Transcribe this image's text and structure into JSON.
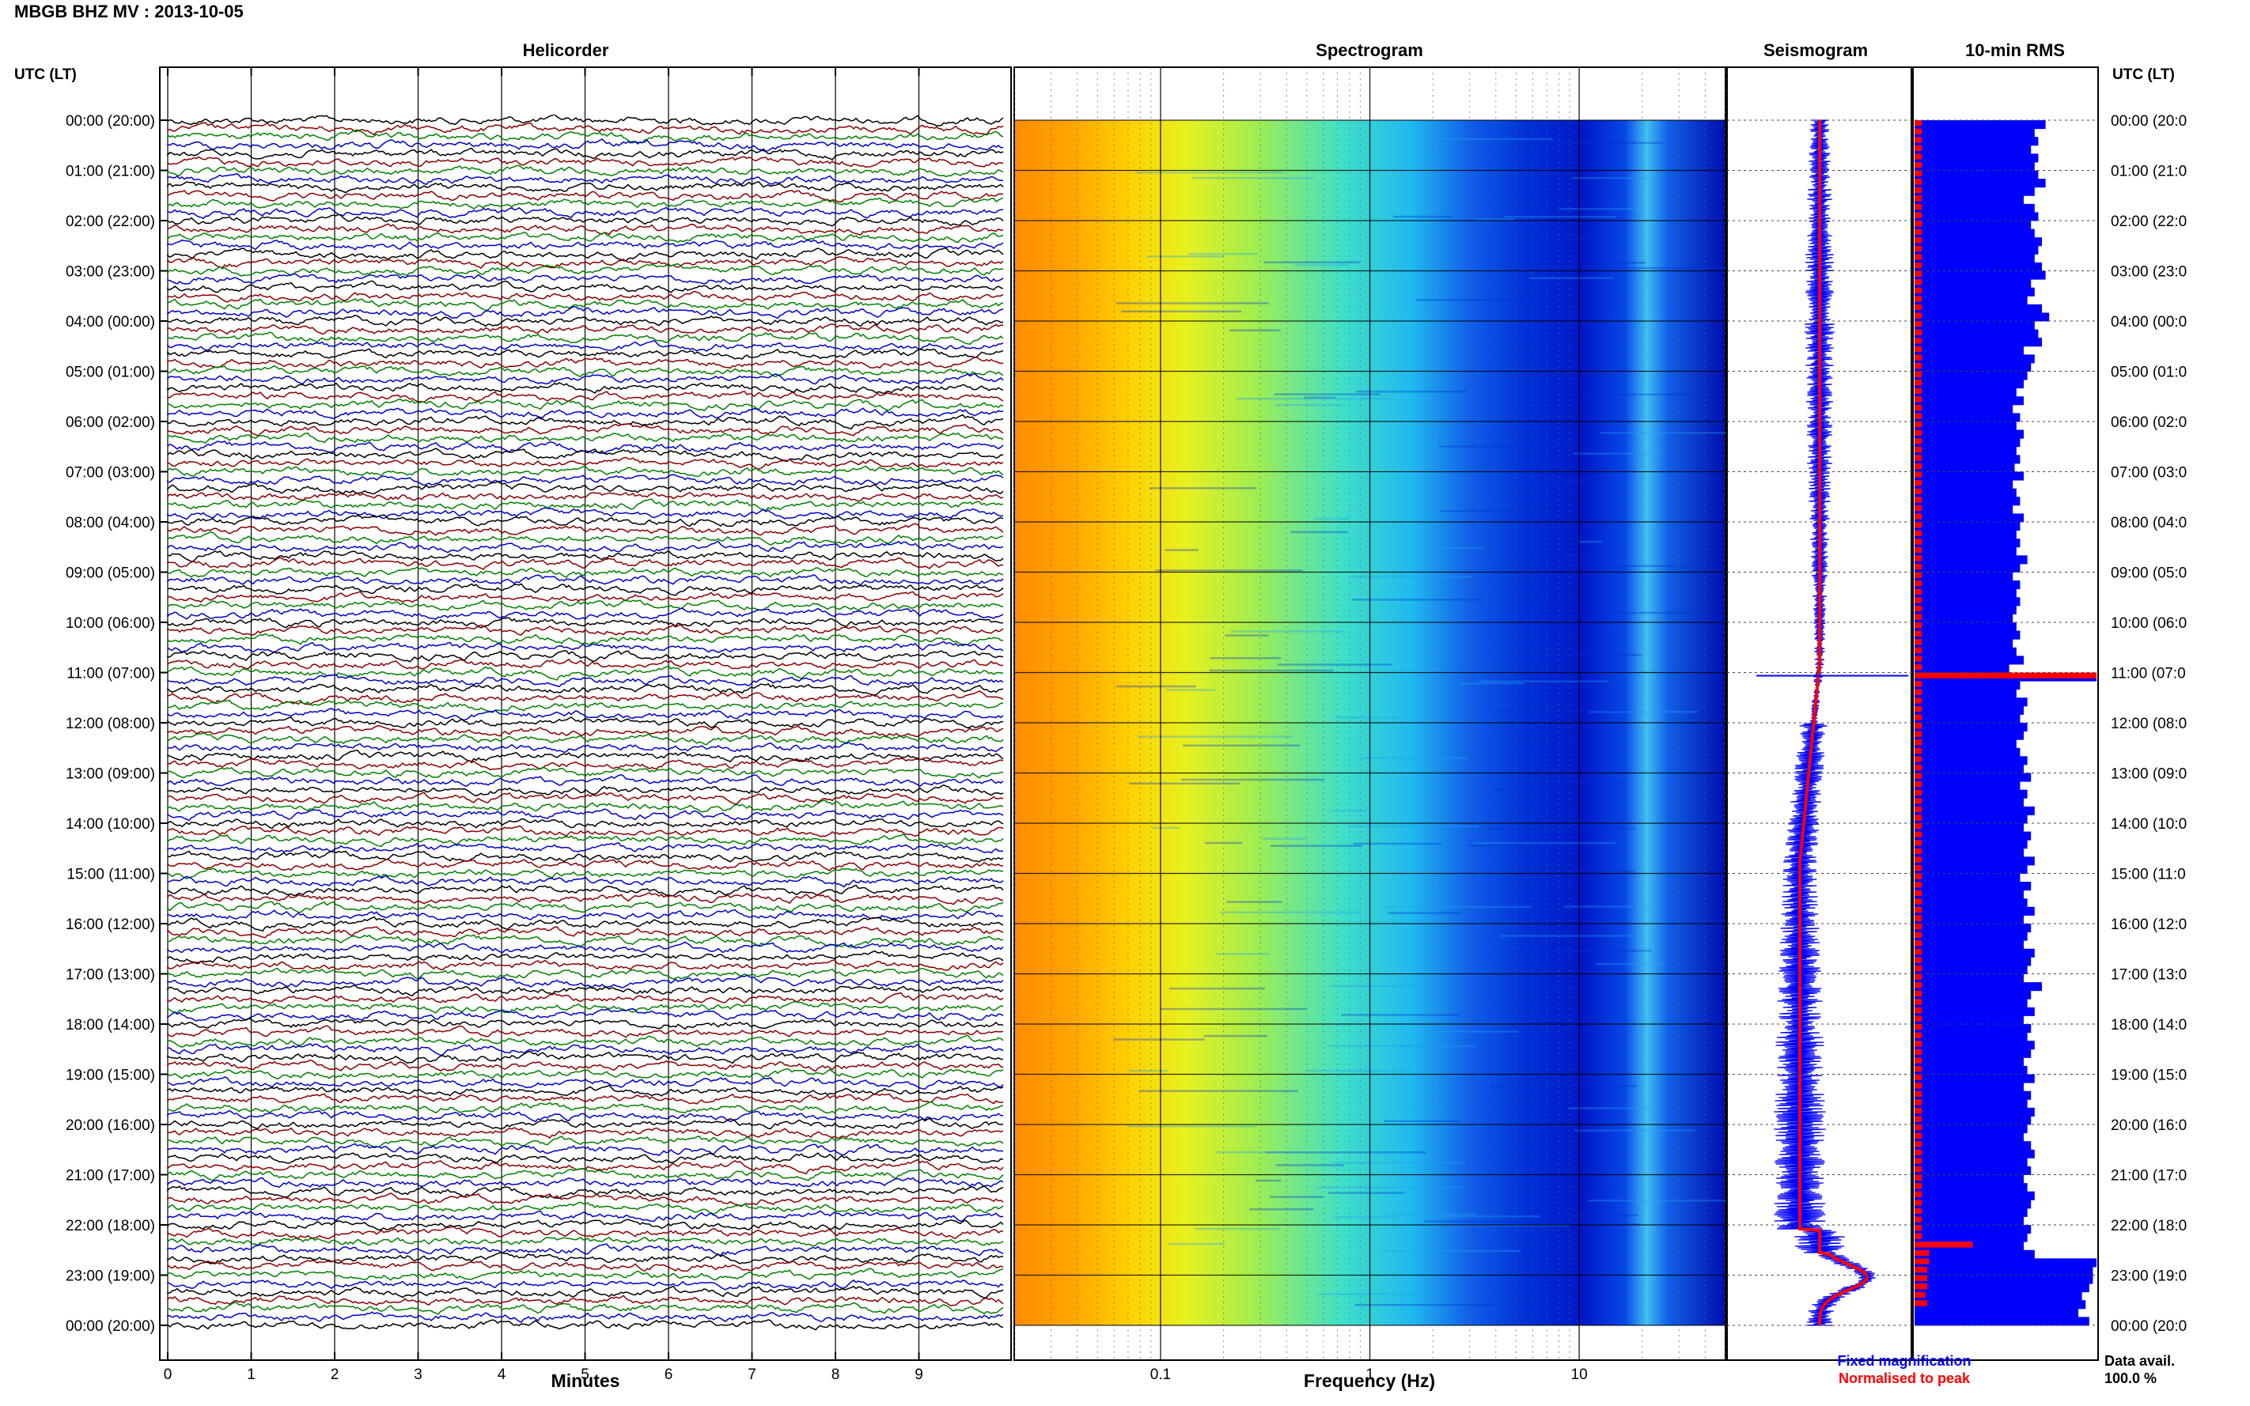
{
  "chart_data": {
    "type": "helicorder",
    "title": "MBGB BHZ MV : 2013-10-05",
    "panels": {
      "helicorder": "Helicorder",
      "spectrogram": "Spectrogram",
      "seismogram": "Seismogram",
      "rms": "10-min RMS"
    },
    "time_axis_label": "UTC (LT)",
    "hour_labels": [
      "00:00 (20:00)",
      "01:00 (21:00)",
      "02:00 (22:00)",
      "03:00 (23:00)",
      "04:00 (00:00)",
      "05:00 (01:00)",
      "06:00 (02:00)",
      "07:00 (03:00)",
      "08:00 (04:00)",
      "09:00 (05:00)",
      "10:00 (06:00)",
      "11:00 (07:00)",
      "12:00 (08:00)",
      "13:00 (09:00)",
      "14:00 (10:00)",
      "15:00 (11:00)",
      "16:00 (12:00)",
      "17:00 (13:00)",
      "18:00 (14:00)",
      "19:00 (15:00)",
      "20:00 (16:00)",
      "21:00 (17:00)",
      "22:00 (18:00)",
      "23:00 (19:00)",
      "00:00 (20:00)"
    ],
    "right_hour_labels": [
      "00:00 (20:0",
      "01:00 (21:0",
      "02:00 (22:0",
      "03:00 (23:0",
      "04:00 (00:0",
      "05:00 (01:0",
      "06:00 (02:0",
      "07:00 (03:0",
      "08:00 (04:0",
      "09:00 (05:0",
      "10:00 (06:0",
      "11:00 (07:0",
      "12:00 (08:0",
      "13:00 (09:0",
      "14:00 (10:0",
      "15:00 (11:0",
      "16:00 (12:0",
      "17:00 (13:0",
      "18:00 (14:0",
      "19:00 (15:0",
      "20:00 (16:0",
      "21:00 (17:0",
      "22:00 (18:0",
      "23:00 (19:0",
      "00:00 (20:0"
    ],
    "helicorder_xaxis": {
      "label": "Minutes",
      "ticks": [
        0,
        1,
        2,
        3,
        4,
        5,
        6,
        7,
        8,
        9
      ],
      "range": [
        0,
        10
      ]
    },
    "helicorder_trace_colors": [
      "#000000",
      "#8b0000",
      "#008000",
      "#0000cc"
    ],
    "helicorder_traces_per_hour": 6,
    "spectrogram_xaxis": {
      "label": "Frequency (Hz)",
      "ticks": [
        "0.1",
        "1",
        "10"
      ],
      "scale": "log",
      "range": [
        0.02,
        50
      ]
    },
    "legend": {
      "fixed": "Fixed magnification",
      "normalised": "Normalised to peak"
    },
    "legend_colors": {
      "fixed": "#0000ff",
      "normalised": "#ff0000"
    },
    "data_avail": {
      "label": "Data avail.",
      "value": "100.0 %"
    },
    "rms_colors": {
      "fixed": "#0000ff",
      "normalised": "#ff0000"
    },
    "rms_fixed": [
      0.72,
      0.66,
      0.68,
      0.64,
      0.68,
      0.66,
      0.68,
      0.72,
      0.66,
      0.6,
      0.66,
      0.68,
      0.64,
      0.66,
      0.7,
      0.68,
      0.66,
      0.7,
      0.72,
      0.64,
      0.66,
      0.62,
      0.7,
      0.74,
      0.66,
      0.68,
      0.7,
      0.6,
      0.66,
      0.64,
      0.62,
      0.6,
      0.56,
      0.6,
      0.54,
      0.58,
      0.56,
      0.6,
      0.58,
      0.56,
      0.58,
      0.55,
      0.6,
      0.54,
      0.56,
      0.58,
      0.54,
      0.6,
      0.58,
      0.56,
      0.58,
      0.56,
      0.62,
      0.58,
      0.54,
      0.58,
      0.56,
      0.58,
      0.56,
      0.54,
      0.56,
      0.58,
      0.54,
      0.56,
      0.6,
      0.52,
      1.0,
      0.58,
      0.56,
      0.62,
      0.6,
      0.58,
      0.62,
      0.6,
      0.56,
      0.58,
      0.62,
      0.6,
      0.64,
      0.58,
      0.62,
      0.6,
      0.66,
      0.62,
      0.6,
      0.64,
      0.62,
      0.6,
      0.66,
      0.62,
      0.58,
      0.64,
      0.6,
      0.62,
      0.66,
      0.6,
      0.64,
      0.62,
      0.6,
      0.66,
      0.64,
      0.62,
      0.6,
      0.7,
      0.64,
      0.62,
      0.66,
      0.6,
      0.64,
      0.62,
      0.66,
      0.64,
      0.6,
      0.62,
      0.66,
      0.6,
      0.64,
      0.62,
      0.66,
      0.64,
      0.62,
      0.6,
      0.64,
      0.66,
      0.62,
      0.64,
      0.6,
      0.62,
      0.66,
      0.64,
      0.62,
      0.6,
      0.64,
      0.62,
      0.6,
      0.66,
      1.0,
      0.98,
      0.98,
      0.96,
      0.92,
      0.94,
      0.9,
      0.96
    ],
    "rms_normalised": [
      0.04,
      0.04,
      0.04,
      0.04,
      0.04,
      0.04,
      0.04,
      0.04,
      0.04,
      0.04,
      0.04,
      0.04,
      0.04,
      0.04,
      0.04,
      0.04,
      0.04,
      0.04,
      0.04,
      0.04,
      0.04,
      0.04,
      0.04,
      0.04,
      0.04,
      0.04,
      0.04,
      0.04,
      0.04,
      0.04,
      0.04,
      0.04,
      0.04,
      0.04,
      0.04,
      0.04,
      0.04,
      0.04,
      0.04,
      0.04,
      0.04,
      0.04,
      0.04,
      0.04,
      0.04,
      0.04,
      0.04,
      0.04,
      0.04,
      0.04,
      0.04,
      0.04,
      0.04,
      0.04,
      0.04,
      0.04,
      0.04,
      0.04,
      0.04,
      0.04,
      0.04,
      0.04,
      0.04,
      0.04,
      0.04,
      0.04,
      1.0,
      0.04,
      0.04,
      0.04,
      0.04,
      0.04,
      0.04,
      0.04,
      0.04,
      0.04,
      0.04,
      0.04,
      0.04,
      0.04,
      0.04,
      0.04,
      0.04,
      0.04,
      0.04,
      0.04,
      0.04,
      0.04,
      0.04,
      0.04,
      0.04,
      0.04,
      0.04,
      0.04,
      0.04,
      0.04,
      0.04,
      0.04,
      0.04,
      0.04,
      0.04,
      0.04,
      0.04,
      0.04,
      0.04,
      0.04,
      0.04,
      0.04,
      0.04,
      0.04,
      0.04,
      0.04,
      0.04,
      0.04,
      0.04,
      0.04,
      0.04,
      0.04,
      0.04,
      0.04,
      0.04,
      0.04,
      0.04,
      0.04,
      0.04,
      0.04,
      0.04,
      0.04,
      0.04,
      0.04,
      0.04,
      0.04,
      0.04,
      0.04,
      0.32,
      0.08,
      0.08,
      0.07,
      0.07,
      0.07,
      0.06,
      0.07
    ],
    "grid": true
  }
}
